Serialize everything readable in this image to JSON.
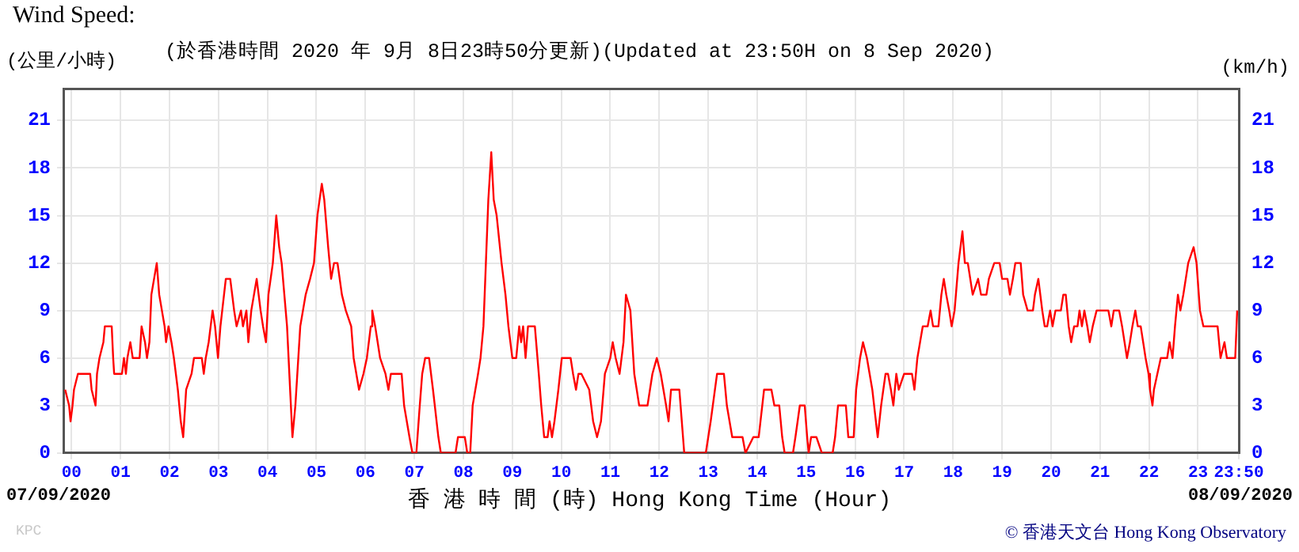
{
  "chart_data": {
    "type": "line",
    "title": "Wind Speed:",
    "subtitle": "(於香港時間 2020 年 9月 8日23時50分更新)(Updated at 23:50H on 8 Sep 2020)",
    "ylabel": "(公里/小時)",
    "y2label": "(km/h)",
    "xlabel": "香 港 時 間 (時) Hong Kong Time (Hour)",
    "annotations": [
      "07/09/2020",
      "08/09/2020",
      "KPC",
      "© 香港天文台 Hong Kong Observatory"
    ],
    "xlim": [
      -0.167,
      23.833
    ],
    "xticks": [
      {
        "value": 0,
        "label": "00"
      },
      {
        "value": 1,
        "label": "01"
      },
      {
        "value": 2,
        "label": "02"
      },
      {
        "value": 3,
        "label": "03"
      },
      {
        "value": 4,
        "label": "04"
      },
      {
        "value": 5,
        "label": "05"
      },
      {
        "value": 6,
        "label": "06"
      },
      {
        "value": 7,
        "label": "07"
      },
      {
        "value": 8,
        "label": "08"
      },
      {
        "value": 9,
        "label": "09"
      },
      10,
      11,
      12,
      13,
      14,
      15,
      16,
      17,
      18,
      19,
      20,
      21,
      22,
      23,
      {
        "value": 23.833,
        "label": "23:50"
      }
    ],
    "ylim": [
      0,
      23
    ],
    "yticks": [
      0,
      3,
      6,
      9,
      12,
      15,
      18,
      21
    ],
    "y2lim": [
      0,
      23
    ],
    "y2ticks": [
      0,
      3,
      6,
      9,
      12,
      15,
      18,
      21
    ],
    "grid": true,
    "legend": false,
    "marker": "none",
    "line_style": "solid",
    "series": [
      {
        "color": "#ff0000",
        "x": [
          -0.13,
          -0.05,
          -0.02,
          0.02,
          0.05,
          0.13,
          0.38,
          0.41,
          0.49,
          0.52,
          0.57,
          0.65,
          0.68,
          0.82,
          0.85,
          0.87,
          1.03,
          1.07,
          1.11,
          1.14,
          1.2,
          1.25,
          1.39,
          1.43,
          1.5,
          1.54,
          1.59,
          1.63,
          1.74,
          1.79,
          1.9,
          1.93,
          1.98,
          2.04,
          2.09,
          2.17,
          2.23,
          2.28,
          2.34,
          2.45,
          2.5,
          2.66,
          2.7,
          2.74,
          2.8,
          2.88,
          2.93,
          2.99,
          3.04,
          3.15,
          3.24,
          3.32,
          3.37,
          3.46,
          3.5,
          3.57,
          3.61,
          3.67,
          3.78,
          3.86,
          3.91,
          3.97,
          4.02,
          4.11,
          4.18,
          4.24,
          4.29,
          4.4,
          4.51,
          4.57,
          4.67,
          4.78,
          4.87,
          4.95,
          5.02,
          5.11,
          5.16,
          5.24,
          5.3,
          5.36,
          5.43,
          5.52,
          5.6,
          5.71,
          5.76,
          5.87,
          5.96,
          6.03,
          6.11,
          6.14,
          6.2,
          6.3,
          6.41,
          6.47,
          6.52,
          6.74,
          6.79,
          6.9,
          6.96,
          7.04,
          7.11,
          7.16,
          7.22,
          7.3,
          7.38,
          7.49,
          7.54,
          7.84,
          7.89,
          8.03,
          8.08,
          8.14,
          8.19,
          8.3,
          8.35,
          8.41,
          8.46,
          8.51,
          8.57,
          8.62,
          8.68,
          8.78,
          8.86,
          8.92,
          9.0,
          9.08,
          9.14,
          9.18,
          9.22,
          9.27,
          9.32,
          9.46,
          9.54,
          9.59,
          9.65,
          9.72,
          9.76,
          9.81,
          9.86,
          9.94,
          10.01,
          10.19,
          10.24,
          10.3,
          10.35,
          10.41,
          10.57,
          10.65,
          10.73,
          10.81,
          10.89,
          11.0,
          11.05,
          11.11,
          11.19,
          11.27,
          11.32,
          11.41,
          11.49,
          11.59,
          11.76,
          11.86,
          11.95,
          12.03,
          12.14,
          12.19,
          12.24,
          12.41,
          12.46,
          12.51,
          12.95,
          13.0,
          13.05,
          13.18,
          13.32,
          13.38,
          13.49,
          13.7,
          13.76,
          13.92,
          14.03,
          14.14,
          14.18,
          14.29,
          14.35,
          14.45,
          14.51,
          14.56,
          14.73,
          14.78,
          14.87,
          14.97,
          15.02,
          15.05,
          15.1,
          15.21,
          15.32,
          15.54,
          15.59,
          15.65,
          15.81,
          15.86,
          15.97,
          16.02,
          16.1,
          16.16,
          16.24,
          16.35,
          16.46,
          16.53,
          16.62,
          16.67,
          16.73,
          16.78,
          16.84,
          16.89,
          17.0,
          17.16,
          17.21,
          17.27,
          17.38,
          17.48,
          17.54,
          17.59,
          17.7,
          17.76,
          17.81,
          17.86,
          17.92,
          17.97,
          18.03,
          18.11,
          18.19,
          18.24,
          18.3,
          18.35,
          18.4,
          18.51,
          18.57,
          18.68,
          18.73,
          18.84,
          18.95,
          19.0,
          19.11,
          19.16,
          19.22,
          19.27,
          19.38,
          19.43,
          19.52,
          19.63,
          19.67,
          19.74,
          19.78,
          19.82,
          19.87,
          19.92,
          19.98,
          20.03,
          20.09,
          20.2,
          20.25,
          20.3,
          20.36,
          20.41,
          20.47,
          20.54,
          20.58,
          20.63,
          20.68,
          20.74,
          20.79,
          20.85,
          20.93,
          21.17,
          21.23,
          21.28,
          21.39,
          21.45,
          21.5,
          21.55,
          21.61,
          21.66,
          21.72,
          21.77,
          21.83,
          21.88,
          21.93,
          21.99,
          22.02,
          22.07,
          22.1,
          22.17,
          22.24,
          22.37,
          22.42,
          22.48,
          22.53,
          22.59,
          22.64,
          22.7,
          22.8,
          22.91,
          22.97,
          23.04,
          23.11,
          23.4,
          23.46,
          23.54,
          23.59,
          23.76,
          23.8
        ],
        "values": [
          4,
          3,
          2,
          3,
          4,
          5,
          5,
          4,
          3,
          5,
          6,
          7,
          8,
          8,
          6,
          5,
          5,
          6,
          5,
          6,
          7,
          6,
          6,
          8,
          7,
          6,
          7,
          10,
          12,
          10,
          8,
          7,
          8,
          7,
          6,
          4,
          2,
          1,
          4,
          5,
          6,
          6,
          5,
          6,
          7,
          9,
          8,
          6,
          8,
          11,
          11,
          9,
          8,
          9,
          8,
          9,
          7,
          9,
          11,
          9,
          8,
          7,
          10,
          12,
          15,
          13,
          12,
          8,
          1,
          3,
          8,
          10,
          11,
          12,
          15,
          17,
          16,
          13,
          11,
          12,
          12,
          10,
          9,
          8,
          6,
          4,
          5,
          6,
          8,
          9,
          8,
          6,
          5,
          4,
          5,
          5,
          3,
          1,
          0,
          0,
          3,
          5,
          6,
          6,
          4,
          1,
          0,
          0,
          1,
          1,
          0,
          0,
          3,
          5,
          6,
          8,
          12,
          16,
          19,
          16,
          15,
          12,
          10,
          8,
          6,
          6,
          8,
          7,
          8,
          6,
          8,
          8,
          5,
          3,
          1,
          1,
          2,
          1,
          2,
          4,
          6,
          6,
          5,
          4,
          5,
          5,
          4,
          2,
          1,
          2,
          5,
          6,
          7,
          6,
          5,
          7,
          10,
          9,
          5,
          3,
          3,
          5,
          6,
          5,
          3,
          2,
          4,
          4,
          2,
          0,
          0,
          1,
          2,
          5,
          5,
          3,
          1,
          1,
          0,
          1,
          1,
          4,
          4,
          4,
          3,
          3,
          1,
          0,
          0,
          1,
          3,
          3,
          1,
          0,
          1,
          1,
          0,
          0,
          1,
          3,
          3,
          1,
          1,
          4,
          6,
          7,
          6,
          4,
          1,
          3,
          5,
          5,
          4,
          3,
          5,
          4,
          5,
          5,
          4,
          6,
          8,
          8,
          9,
          8,
          8,
          10,
          11,
          10,
          9,
          8,
          9,
          12,
          14,
          12,
          12,
          11,
          10,
          11,
          10,
          10,
          11,
          12,
          12,
          11,
          11,
          10,
          11,
          12,
          12,
          10,
          9,
          9,
          10,
          11,
          10,
          9,
          8,
          8,
          9,
          8,
          9,
          9,
          10,
          10,
          8,
          7,
          8,
          8,
          9,
          8,
          9,
          8,
          7,
          8,
          9,
          9,
          8,
          9,
          9,
          8,
          7,
          6,
          7,
          8,
          9,
          8,
          8,
          7,
          6,
          5,
          4,
          3,
          4,
          5,
          6,
          6,
          7,
          6,
          8,
          10,
          9,
          10,
          12,
          13,
          12,
          9,
          8,
          8,
          6,
          7,
          6,
          6,
          9
        ]
      }
    ]
  }
}
